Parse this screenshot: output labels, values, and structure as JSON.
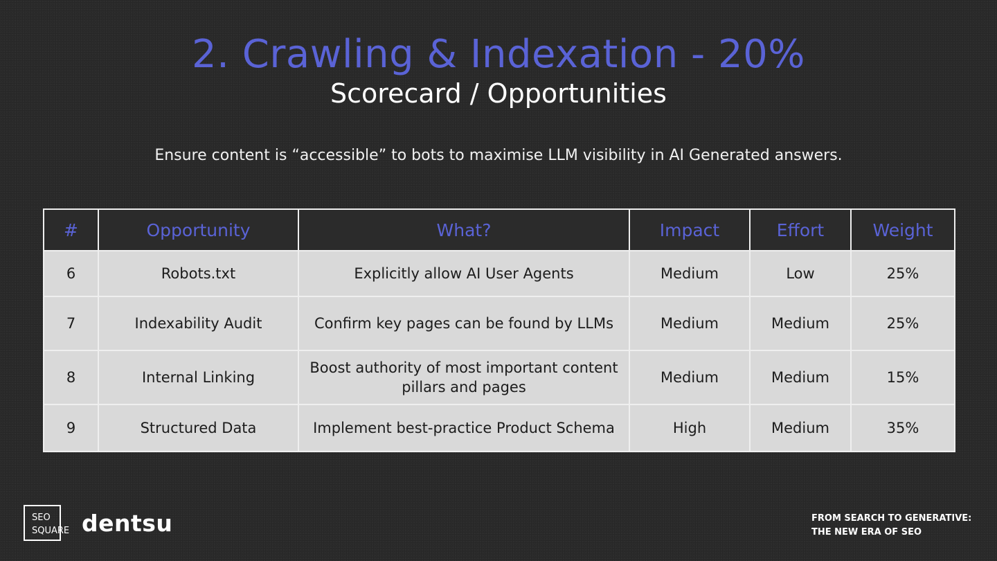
{
  "slide": {
    "title": "2. Crawling & Indexation - 20%",
    "subtitle": "Scorecard / Opportunities",
    "tagline": "Ensure content is “accessible” to bots to maximise LLM visibility in AI Generated answers."
  },
  "table": {
    "headers": [
      "#",
      "Opportunity",
      "What?",
      "Impact",
      "Effort",
      "Weight"
    ],
    "rows": [
      {
        "num": "6",
        "opportunity": "Robots.txt",
        "what": "Explicitly allow AI User Agents",
        "impact": "Medium",
        "effort": "Low",
        "weight": "25%"
      },
      {
        "num": "7",
        "opportunity": "Indexability Audit",
        "what": "Confirm key pages can be found by LLMs",
        "impact": "Medium",
        "effort": "Medium",
        "weight": "25%"
      },
      {
        "num": "8",
        "opportunity": "Internal Linking",
        "what": "Boost authority of most important content pillars and pages",
        "impact": "Medium",
        "effort": "Medium",
        "weight": "15%"
      },
      {
        "num": "9",
        "opportunity": "Structured Data",
        "what": "Implement best-practice Product Schema",
        "impact": "High",
        "effort": "Medium",
        "weight": "35%"
      }
    ]
  },
  "footer": {
    "logo_line1": "SEO",
    "logo_line2": "SQUARE",
    "brand": "dentsu",
    "tagline_line1": "FROM SEARCH TO GENERATIVE:",
    "tagline_line2": "THE NEW ERA OF SEO"
  },
  "colors": {
    "background": "#2b2b2b",
    "accent": "#5a63d6",
    "row_fill": "#d9d9d9"
  }
}
